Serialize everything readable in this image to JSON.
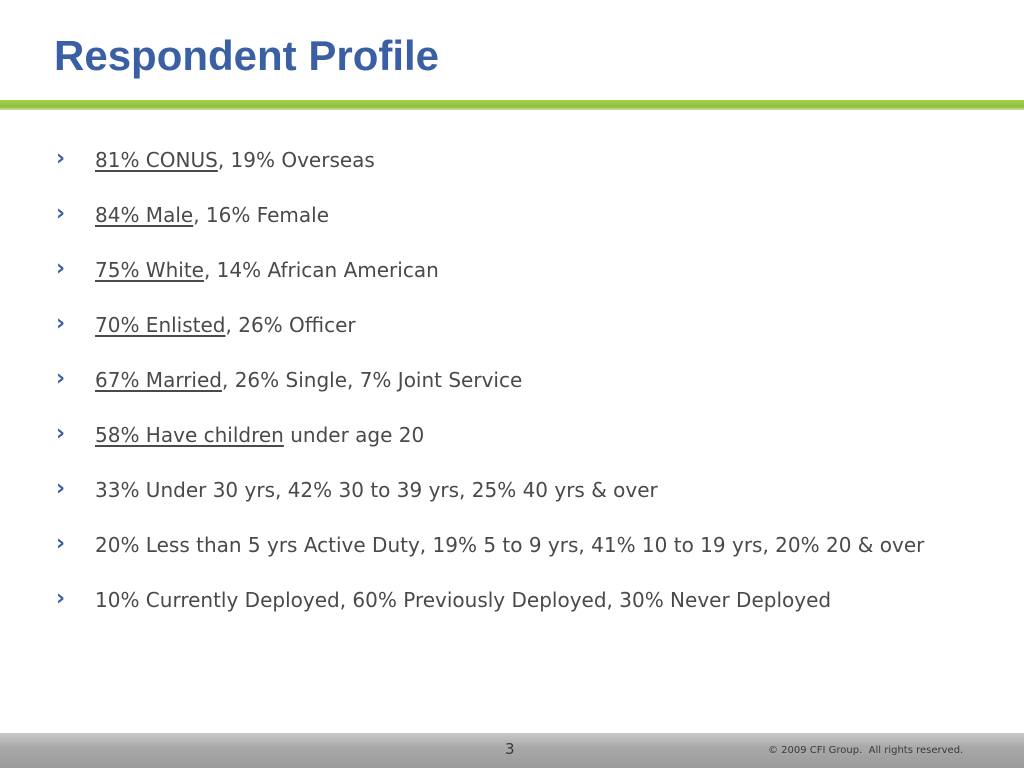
{
  "slide": {
    "title": "Respondent Profile"
  },
  "bullets": [
    {
      "underlined": "81% CONUS",
      "rest": ", 19% Overseas"
    },
    {
      "underlined": "84% Male",
      "rest": ", 16% Female"
    },
    {
      "underlined": "75% White",
      "rest": ", 14% African American"
    },
    {
      "underlined": "70% Enlisted",
      "rest": ", 26% Officer"
    },
    {
      "underlined": "67% Married",
      "rest": ", 26% Single, 7% Joint Service"
    },
    {
      "underlined": "58% Have children",
      "rest": " under age 20"
    },
    {
      "underlined": "",
      "rest": "33% Under 30 yrs, 42% 30 to 39 yrs, 25% 40 yrs & over"
    },
    {
      "underlined": "",
      "rest": "20% Less than 5 yrs Active Duty, 19% 5 to 9 yrs, 41% 10 to 19 yrs, 20% 20 & over"
    },
    {
      "underlined": "",
      "rest": "10% Currently Deployed, 60% Previously Deployed, 30% Never Deployed"
    }
  ],
  "footer": {
    "page_number": "3",
    "copyright": "© 2009 CFI Group.  All rights reserved."
  },
  "icons": {
    "bullet": "chevron-right-icon"
  },
  "colors": {
    "title": "#3a5fa3",
    "accent_rule": "#8dc03b",
    "bullet": "#3a5fa3",
    "body_text": "#4a4a4a",
    "footer": "#a9a9a9"
  }
}
